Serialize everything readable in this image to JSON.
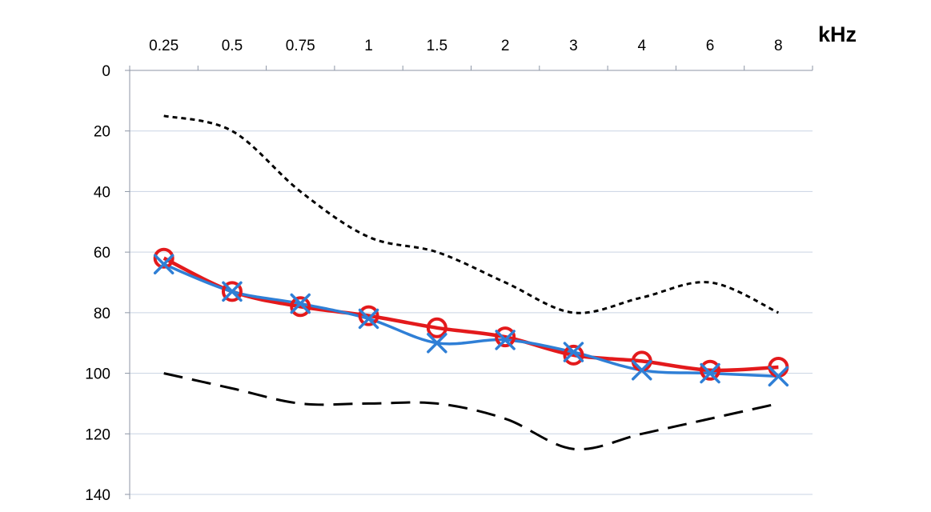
{
  "chart_data": {
    "type": "line",
    "x_unit_label": "kHz",
    "categories": [
      "0.25",
      "0.5",
      "0.75",
      "1",
      "1.5",
      "2",
      "3",
      "4",
      "6",
      "8"
    ],
    "y_ticks": [
      "0",
      "20",
      "40",
      "60",
      "80",
      "100",
      "120",
      "140"
    ],
    "ylim": [
      0,
      140
    ],
    "y_inverted": true,
    "x_axis_position": "top",
    "grid": true,
    "series": [
      {
        "key": "upper-bound",
        "style": "dotted",
        "color": "#000000",
        "values": [
          15,
          20,
          40,
          55,
          60,
          70,
          80,
          75,
          70,
          80
        ]
      },
      {
        "key": "lower-bound",
        "style": "dashed",
        "color": "#000000",
        "values": [
          100,
          105,
          110,
          110,
          110,
          115,
          125,
          120,
          115,
          110
        ]
      },
      {
        "key": "circle-series",
        "marker": "circle",
        "color": "#e31a1c",
        "values": [
          62,
          73,
          78,
          81,
          85,
          88,
          94,
          96,
          99,
          98
        ]
      },
      {
        "key": "cross-series",
        "marker": "cross",
        "color": "#2f7fd6",
        "values": [
          64,
          73,
          77,
          82,
          90,
          89,
          93,
          99,
          100,
          101
        ]
      }
    ]
  }
}
